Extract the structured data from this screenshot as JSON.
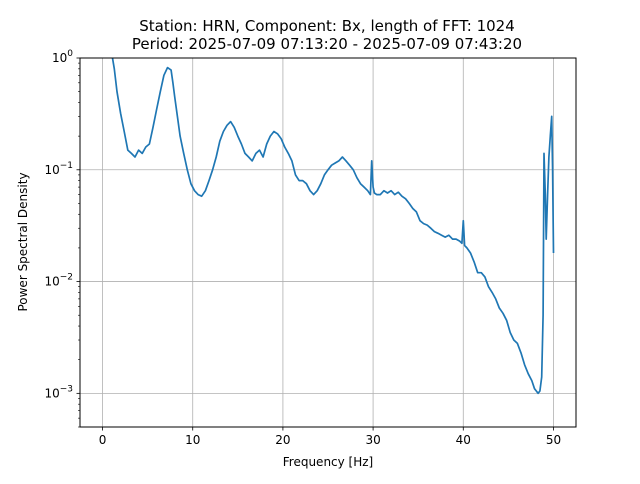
{
  "chart_data": {
    "type": "line",
    "title": "Station: HRN, Component: Bx, length of FFT: 1024",
    "subtitle": "Period: 2025-07-09 07:13:20 - 2025-07-09 07:43:20",
    "xlabel": "Frequency [Hz]",
    "ylabel": "Power Spectral Density",
    "xlim": [
      -2.5,
      52.5
    ],
    "ylim": [
      0.0005,
      1
    ],
    "yscale": "log",
    "grid": true,
    "line_color": "#1f77b4",
    "x_ticks": [
      0,
      10,
      20,
      30,
      40,
      50
    ],
    "x_tick_labels": [
      "0",
      "10",
      "20",
      "30",
      "40",
      "50"
    ],
    "y_ticks": [
      0.001,
      0.01,
      0.1,
      1
    ],
    "y_tick_labels": [
      {
        "base": "10",
        "exp": "−3"
      },
      {
        "base": "10",
        "exp": "−2"
      },
      {
        "base": "10",
        "exp": "−1"
      },
      {
        "base": "10",
        "exp": "0"
      }
    ],
    "series": [
      {
        "name": "",
        "x": [
          1.1,
          1.3,
          1.6,
          2.0,
          2.4,
          2.8,
          3.2,
          3.6,
          4.0,
          4.4,
          4.8,
          5.2,
          5.6,
          6.0,
          6.4,
          6.8,
          7.2,
          7.6,
          7.8,
          8.0,
          8.3,
          8.6,
          9.0,
          9.4,
          9.8,
          10.2,
          10.6,
          11.0,
          11.4,
          11.8,
          12.2,
          12.6,
          13.0,
          13.4,
          13.8,
          14.2,
          14.6,
          15.0,
          15.4,
          15.8,
          16.2,
          16.6,
          17.0,
          17.4,
          17.8,
          18.2,
          18.6,
          19.0,
          19.4,
          19.8,
          20.2,
          20.6,
          21.0,
          21.4,
          21.8,
          22.2,
          22.6,
          23.0,
          23.4,
          23.8,
          24.2,
          24.6,
          25.0,
          25.4,
          25.8,
          26.2,
          26.6,
          27.0,
          27.4,
          27.8,
          28.2,
          28.6,
          29.0,
          29.4,
          29.7,
          29.85,
          30.0,
          30.15,
          30.4,
          30.8,
          31.2,
          31.6,
          32.0,
          32.4,
          32.8,
          33.2,
          33.6,
          34.0,
          34.4,
          34.8,
          35.2,
          35.6,
          36.0,
          36.4,
          36.8,
          37.2,
          37.6,
          38.0,
          38.4,
          38.8,
          39.2,
          39.6,
          39.85,
          40.0,
          40.15,
          40.4,
          40.8,
          41.2,
          41.6,
          42.0,
          42.4,
          42.8,
          43.2,
          43.6,
          44.0,
          44.4,
          44.8,
          45.2,
          45.6,
          46.0,
          46.4,
          46.8,
          47.2,
          47.6,
          47.9,
          48.1,
          48.3,
          48.5,
          48.7,
          48.85,
          48.95,
          49.1,
          49.2,
          49.35,
          49.5,
          49.65,
          49.8,
          49.9,
          50.0
        ],
        "y": [
          1.0,
          0.8,
          0.5,
          0.32,
          0.22,
          0.15,
          0.14,
          0.13,
          0.15,
          0.14,
          0.16,
          0.17,
          0.24,
          0.35,
          0.5,
          0.7,
          0.82,
          0.78,
          0.6,
          0.45,
          0.3,
          0.2,
          0.14,
          0.1,
          0.075,
          0.065,
          0.06,
          0.058,
          0.065,
          0.08,
          0.1,
          0.13,
          0.18,
          0.22,
          0.25,
          0.27,
          0.24,
          0.2,
          0.17,
          0.14,
          0.13,
          0.12,
          0.14,
          0.15,
          0.13,
          0.17,
          0.2,
          0.22,
          0.21,
          0.19,
          0.16,
          0.14,
          0.12,
          0.09,
          0.08,
          0.08,
          0.075,
          0.065,
          0.06,
          0.065,
          0.075,
          0.09,
          0.1,
          0.11,
          0.115,
          0.12,
          0.13,
          0.12,
          0.11,
          0.1,
          0.085,
          0.075,
          0.07,
          0.065,
          0.06,
          0.12,
          0.07,
          0.062,
          0.06,
          0.06,
          0.065,
          0.062,
          0.065,
          0.06,
          0.063,
          0.058,
          0.055,
          0.05,
          0.045,
          0.042,
          0.035,
          0.033,
          0.032,
          0.03,
          0.028,
          0.027,
          0.026,
          0.025,
          0.026,
          0.024,
          0.024,
          0.023,
          0.022,
          0.035,
          0.021,
          0.02,
          0.018,
          0.015,
          0.012,
          0.012,
          0.011,
          0.009,
          0.008,
          0.007,
          0.0058,
          0.0052,
          0.0045,
          0.0035,
          0.003,
          0.0028,
          0.0023,
          0.0018,
          0.0015,
          0.0013,
          0.0011,
          0.00105,
          0.001,
          0.00105,
          0.0014,
          0.005,
          0.14,
          0.06,
          0.024,
          0.06,
          0.13,
          0.2,
          0.3,
          0.1,
          0.018
        ]
      }
    ]
  }
}
